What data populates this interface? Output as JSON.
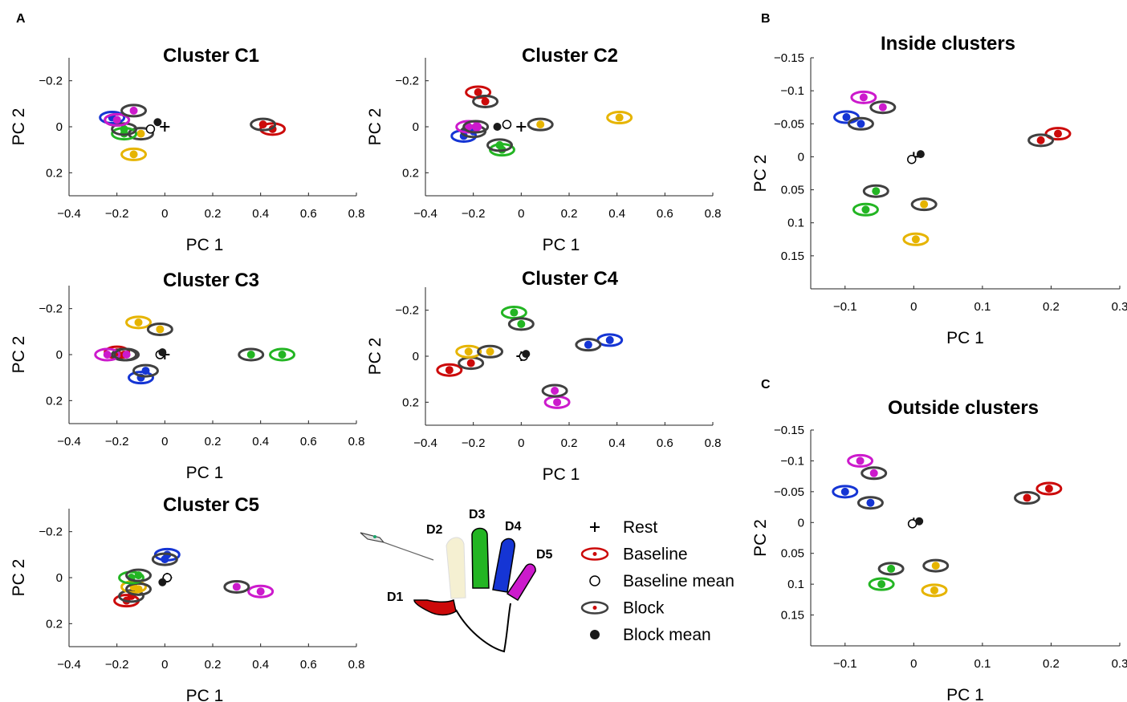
{
  "figure": {
    "panel_labels": {
      "a": "A",
      "b": "B",
      "c": "C"
    },
    "colors": {
      "D1": "#cc0a0a",
      "D2": "#e6b400",
      "D3": "#23b523",
      "D4": "#1535d4",
      "D5": "#cc1acc",
      "block_ring": "#404040",
      "mean": "#1a1a1a",
      "pale_finger": "#f5f0d2"
    },
    "legend": {
      "items": [
        {
          "key": "rest",
          "label": "Rest"
        },
        {
          "key": "baseline",
          "label": "Baseline"
        },
        {
          "key": "baseline_mean",
          "label": "Baseline mean"
        },
        {
          "key": "block",
          "label": "Block"
        },
        {
          "key": "block_mean",
          "label": "Block mean"
        }
      ]
    },
    "hand": {
      "labels": [
        "D1",
        "D2",
        "D3",
        "D4",
        "D5"
      ]
    }
  },
  "chart_data": [
    {
      "type": "scatter",
      "title": "Cluster C1",
      "xlabel": "PC 1",
      "ylabel": "PC 2",
      "xlim": [
        -0.4,
        0.8
      ],
      "ylim": [
        -0.3,
        0.3
      ],
      "y_reversed": true,
      "xticks": [
        "−0.4",
        "−0.2",
        "0",
        "0.2",
        "0.4",
        "0.6",
        "0.8"
      ],
      "xtick_values": [
        -0.4,
        -0.2,
        0,
        0.2,
        0.4,
        0.6,
        0.8
      ],
      "yticks": [
        "−0.2",
        "0",
        "0.2"
      ],
      "ytick_values": [
        -0.2,
        0,
        0.2
      ],
      "rest": [
        0.0,
        0.0
      ],
      "baseline_mean": [
        -0.06,
        0.01
      ],
      "block_mean": [
        -0.03,
        -0.02
      ],
      "series": [
        {
          "name": "D1",
          "baseline": [
            0.45,
            0.01
          ],
          "block": [
            0.41,
            -0.01
          ]
        },
        {
          "name": "D2",
          "baseline": [
            -0.13,
            0.12
          ],
          "block": [
            -0.1,
            0.03
          ]
        },
        {
          "name": "D3",
          "baseline": [
            -0.17,
            0.03
          ],
          "block": [
            -0.17,
            0.01
          ]
        },
        {
          "name": "D4",
          "baseline": [
            -0.22,
            -0.04
          ],
          "block": [
            -0.2,
            -0.03
          ]
        },
        {
          "name": "D5",
          "baseline": [
            -0.2,
            -0.03
          ],
          "block": [
            -0.13,
            -0.07
          ]
        }
      ]
    },
    {
      "type": "scatter",
      "title": "Cluster C2",
      "xlabel": "PC 1",
      "ylabel": "PC 2",
      "xlim": [
        -0.4,
        0.8
      ],
      "ylim": [
        -0.3,
        0.3
      ],
      "y_reversed": true,
      "xticks": [
        "−0.4",
        "−0.2",
        "0",
        "0.2",
        "0.4",
        "0.6",
        "0.8"
      ],
      "xtick_values": [
        -0.4,
        -0.2,
        0,
        0.2,
        0.4,
        0.6,
        0.8
      ],
      "yticks": [
        "−0.2",
        "0",
        "0.2"
      ],
      "ytick_values": [
        -0.2,
        0,
        0.2
      ],
      "rest": [
        0.0,
        0.0
      ],
      "baseline_mean": [
        -0.06,
        -0.01
      ],
      "block_mean": [
        -0.1,
        0.0
      ],
      "series": [
        {
          "name": "D1",
          "baseline": [
            -0.18,
            -0.15
          ],
          "block": [
            -0.15,
            -0.11
          ]
        },
        {
          "name": "D2",
          "baseline": [
            0.41,
            -0.04
          ],
          "block": [
            0.08,
            -0.01
          ]
        },
        {
          "name": "D3",
          "baseline": [
            -0.08,
            0.1
          ],
          "block": [
            -0.09,
            0.08
          ]
        },
        {
          "name": "D4",
          "baseline": [
            -0.24,
            0.04
          ],
          "block": [
            -0.2,
            0.02
          ]
        },
        {
          "name": "D5",
          "baseline": [
            -0.22,
            0.0
          ],
          "block": [
            -0.19,
            0.0
          ]
        }
      ]
    },
    {
      "type": "scatter",
      "title": "Cluster C3",
      "xlabel": "PC 1",
      "ylabel": "PC 2",
      "xlim": [
        -0.4,
        0.8
      ],
      "ylim": [
        -0.3,
        0.3
      ],
      "y_reversed": true,
      "xticks": [
        "−0.4",
        "−0.2",
        "0",
        "0.2",
        "0.4",
        "0.6",
        "0.8"
      ],
      "xtick_values": [
        -0.4,
        -0.2,
        0,
        0.2,
        0.4,
        0.6,
        0.8
      ],
      "yticks": [
        "−0.2",
        "0",
        "0.2"
      ],
      "ytick_values": [
        -0.2,
        0,
        0.2
      ],
      "rest": [
        0.0,
        0.0
      ],
      "baseline_mean": [
        -0.02,
        0.0
      ],
      "block_mean": [
        -0.01,
        -0.01
      ],
      "series": [
        {
          "name": "D1",
          "baseline": [
            -0.2,
            -0.01
          ],
          "block": [
            -0.17,
            0.0
          ]
        },
        {
          "name": "D2",
          "baseline": [
            -0.11,
            -0.14
          ],
          "block": [
            -0.02,
            -0.11
          ]
        },
        {
          "name": "D3",
          "baseline": [
            0.49,
            0.0
          ],
          "block": [
            0.36,
            0.0
          ]
        },
        {
          "name": "D4",
          "baseline": [
            -0.1,
            0.1
          ],
          "block": [
            -0.08,
            0.07
          ]
        },
        {
          "name": "D5",
          "baseline": [
            -0.24,
            0.0
          ],
          "block": [
            -0.16,
            0.0
          ]
        }
      ]
    },
    {
      "type": "scatter",
      "title": "Cluster C4",
      "xlabel": "PC 1",
      "ylabel": "PC 2",
      "xlim": [
        -0.4,
        0.8
      ],
      "ylim": [
        -0.3,
        0.3
      ],
      "y_reversed": true,
      "xticks": [
        "−0.4",
        "−0.2",
        "0",
        "0.2",
        "0.4",
        "0.6",
        "0.8"
      ],
      "xtick_values": [
        -0.4,
        -0.2,
        0,
        0.2,
        0.4,
        0.6,
        0.8
      ],
      "yticks": [
        "−0.2",
        "0",
        "0.2"
      ],
      "ytick_values": [
        -0.2,
        0,
        0.2
      ],
      "rest": [
        0.0,
        0.0
      ],
      "baseline_mean": [
        0.01,
        0.0
      ],
      "block_mean": [
        0.02,
        -0.01
      ],
      "series": [
        {
          "name": "D1",
          "baseline": [
            -0.3,
            0.06
          ],
          "block": [
            -0.21,
            0.03
          ]
        },
        {
          "name": "D2",
          "baseline": [
            -0.22,
            -0.02
          ],
          "block": [
            -0.13,
            -0.02
          ]
        },
        {
          "name": "D3",
          "baseline": [
            -0.03,
            -0.19
          ],
          "block": [
            0.0,
            -0.14
          ]
        },
        {
          "name": "D4",
          "baseline": [
            0.37,
            -0.07
          ],
          "block": [
            0.28,
            -0.05
          ]
        },
        {
          "name": "D5",
          "baseline": [
            0.15,
            0.2
          ],
          "block": [
            0.14,
            0.15
          ]
        }
      ]
    },
    {
      "type": "scatter",
      "title": "Cluster C5",
      "xlabel": "PC 1",
      "ylabel": "PC 2",
      "xlim": [
        -0.4,
        0.8
      ],
      "ylim": [
        -0.3,
        0.3
      ],
      "y_reversed": true,
      "xticks": [
        "−0.4",
        "−0.2",
        "0",
        "0.2",
        "0.4",
        "0.6",
        "0.8"
      ],
      "xtick_values": [
        -0.4,
        -0.2,
        0,
        0.2,
        0.4,
        0.6,
        0.8
      ],
      "yticks": [
        "−0.2",
        "0",
        "0.2"
      ],
      "ytick_values": [
        -0.2,
        0,
        0.2
      ],
      "rest": [
        0.01,
        0.0
      ],
      "baseline_mean": [
        0.01,
        0.0
      ],
      "block_mean": [
        -0.01,
        0.02
      ],
      "series": [
        {
          "name": "D1",
          "baseline": [
            -0.16,
            0.1
          ],
          "block": [
            -0.14,
            0.08
          ]
        },
        {
          "name": "D2",
          "baseline": [
            -0.13,
            0.04
          ],
          "block": [
            -0.11,
            0.05
          ]
        },
        {
          "name": "D3",
          "baseline": [
            -0.14,
            0.0
          ],
          "block": [
            -0.11,
            -0.01
          ]
        },
        {
          "name": "D4",
          "baseline": [
            0.01,
            -0.1
          ],
          "block": [
            0.0,
            -0.08
          ]
        },
        {
          "name": "D5",
          "baseline": [
            0.4,
            0.06
          ],
          "block": [
            0.3,
            0.04
          ]
        }
      ]
    },
    {
      "type": "scatter",
      "title": "Inside clusters",
      "xlabel": "PC 1",
      "ylabel": "PC 2",
      "xlim": [
        -0.15,
        0.3
      ],
      "ylim": [
        -0.15,
        0.2
      ],
      "y_reversed": true,
      "xticks": [
        "−0.1",
        "0",
        "0.1",
        "0.2",
        "0.3"
      ],
      "xtick_values": [
        -0.1,
        0,
        0.1,
        0.2,
        0.3
      ],
      "yticks": [
        "−0.15",
        "−0.1",
        "−0.05",
        "0",
        "0.05",
        "0.1",
        "0.15"
      ],
      "ytick_values": [
        -0.15,
        -0.1,
        -0.05,
        0,
        0.05,
        0.1,
        0.15
      ],
      "rest": [
        0.0,
        0.0
      ],
      "baseline_mean": [
        -0.003,
        0.004
      ],
      "block_mean": [
        0.01,
        -0.004
      ],
      "series": [
        {
          "name": "D1",
          "baseline": [
            0.21,
            -0.035
          ],
          "block": [
            0.185,
            -0.025
          ]
        },
        {
          "name": "D2",
          "baseline": [
            0.003,
            0.125
          ],
          "block": [
            0.015,
            0.072
          ]
        },
        {
          "name": "D3",
          "baseline": [
            -0.07,
            0.08
          ],
          "block": [
            -0.055,
            0.052
          ]
        },
        {
          "name": "D4",
          "baseline": [
            -0.098,
            -0.06
          ],
          "block": [
            -0.077,
            -0.05
          ]
        },
        {
          "name": "D5",
          "baseline": [
            -0.073,
            -0.09
          ],
          "block": [
            -0.045,
            -0.075
          ]
        }
      ]
    },
    {
      "type": "scatter",
      "title": "Outside clusters",
      "xlabel": "PC 1",
      "ylabel": "PC 2",
      "xlim": [
        -0.15,
        0.3
      ],
      "ylim": [
        -0.15,
        0.2
      ],
      "y_reversed": true,
      "xticks": [
        "−0.1",
        "0",
        "0.1",
        "0.2",
        "0.3"
      ],
      "xtick_values": [
        -0.1,
        0,
        0.1,
        0.2,
        0.3
      ],
      "yticks": [
        "−0.15",
        "−0.1",
        "−0.05",
        "0",
        "0.05",
        "0.1",
        "0.15"
      ],
      "ytick_values": [
        -0.15,
        -0.1,
        -0.05,
        0,
        0.05,
        0.1,
        0.15
      ],
      "rest": [
        0.0,
        0.0
      ],
      "baseline_mean": [
        -0.002,
        0.002
      ],
      "block_mean": [
        0.008,
        -0.002
      ],
      "series": [
        {
          "name": "D1",
          "baseline": [
            0.197,
            -0.055
          ],
          "block": [
            0.165,
            -0.04
          ]
        },
        {
          "name": "D2",
          "baseline": [
            0.03,
            0.11
          ],
          "block": [
            0.032,
            0.07
          ]
        },
        {
          "name": "D3",
          "baseline": [
            -0.047,
            0.1
          ],
          "block": [
            -0.033,
            0.075
          ]
        },
        {
          "name": "D4",
          "baseline": [
            -0.1,
            -0.05
          ],
          "block": [
            -0.063,
            -0.032
          ]
        },
        {
          "name": "D5",
          "baseline": [
            -0.078,
            -0.1
          ],
          "block": [
            -0.058,
            -0.08
          ]
        }
      ]
    }
  ]
}
